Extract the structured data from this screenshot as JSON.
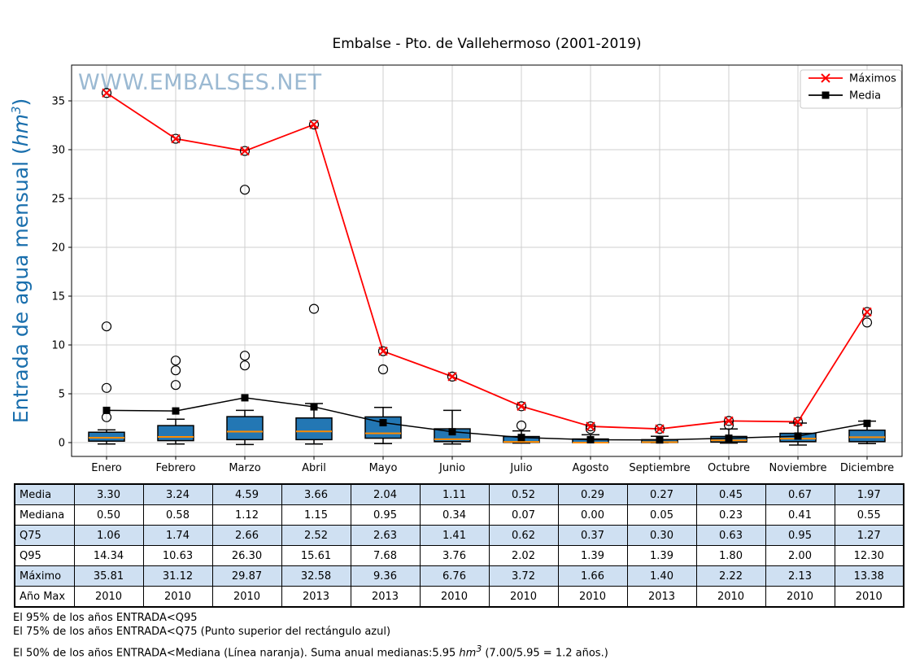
{
  "chart_data": {
    "type": "boxplot",
    "title": "Embalse - Pto. de Vallehermoso (2001-2019)",
    "watermark": "WWW.EMBALSES.NET",
    "ylabel": {
      "pre": "Entrada de agua mensual (",
      "unit": "hm",
      "sup": "3",
      "post": ")"
    },
    "ylim": [
      -1.8,
      37.6
    ],
    "yticks": [
      0,
      5,
      10,
      15,
      20,
      25,
      30,
      35
    ],
    "grid": true,
    "categories": [
      "Enero",
      "Febrero",
      "Marzo",
      "Abril",
      "Mayo",
      "Junio",
      "Julio",
      "Agosto",
      "Septiembre",
      "Octubre",
      "Noviembre",
      "Diciembre"
    ],
    "legend": {
      "position": "top-right",
      "entries": [
        {
          "label": "Máximos",
          "color": "#ff0000",
          "marker": "x"
        },
        {
          "label": "Media",
          "color": "#000000",
          "marker": "square"
        }
      ]
    },
    "series": [
      {
        "name": "Máximos",
        "type": "line",
        "color": "#ff0000",
        "marker": "x",
        "values": [
          35.81,
          31.12,
          29.87,
          32.58,
          9.36,
          6.76,
          3.72,
          1.66,
          1.4,
          2.22,
          2.13,
          13.38
        ]
      },
      {
        "name": "Media",
        "type": "line",
        "color": "#000000",
        "marker": "square",
        "values": [
          3.3,
          3.24,
          4.59,
          3.66,
          2.04,
          1.11,
          0.52,
          0.29,
          0.27,
          0.45,
          0.67,
          1.97
        ]
      }
    ],
    "boxplot": {
      "box_color": "#2377b4",
      "median_color": "#ff8c00",
      "boxes": [
        {
          "month": "Enero",
          "q1": 0.15,
          "median": 0.5,
          "q3": 1.06,
          "whisker_low": -0.15,
          "whisker_high": 1.3,
          "outliers": [
            2.6,
            5.6,
            11.9
          ]
        },
        {
          "month": "Febrero",
          "q1": 0.2,
          "median": 0.58,
          "q3": 1.74,
          "whisker_low": -0.15,
          "whisker_high": 2.4,
          "outliers": [
            5.9,
            7.4,
            8.4
          ]
        },
        {
          "month": "Marzo",
          "q1": 0.3,
          "median": 1.12,
          "q3": 2.66,
          "whisker_low": -0.2,
          "whisker_high": 3.3,
          "outliers": [
            7.9,
            8.9,
            25.9
          ]
        },
        {
          "month": "Abril",
          "q1": 0.3,
          "median": 1.15,
          "q3": 2.52,
          "whisker_low": -0.15,
          "whisker_high": 4.0,
          "outliers": [
            13.7
          ]
        },
        {
          "month": "Mayo",
          "q1": 0.45,
          "median": 0.95,
          "q3": 2.63,
          "whisker_low": -0.1,
          "whisker_high": 3.6,
          "outliers": [
            7.5
          ]
        },
        {
          "month": "Junio",
          "q1": 0.1,
          "median": 0.34,
          "q3": 1.41,
          "whisker_low": -0.15,
          "whisker_high": 3.3,
          "outliers": []
        },
        {
          "month": "Julio",
          "q1": 0.02,
          "median": 0.07,
          "q3": 0.62,
          "whisker_low": -0.05,
          "whisker_high": 1.2,
          "outliers": [
            1.75
          ]
        },
        {
          "month": "Agosto",
          "q1": 0.0,
          "median": 0.0,
          "q3": 0.37,
          "whisker_low": 0.0,
          "whisker_high": 0.8,
          "outliers": [
            1.39
          ]
        },
        {
          "month": "Septiembre",
          "q1": 0.01,
          "median": 0.05,
          "q3": 0.3,
          "whisker_low": 0.0,
          "whisker_high": 0.65,
          "outliers": []
        },
        {
          "month": "Octubre",
          "q1": 0.05,
          "median": 0.23,
          "q3": 0.63,
          "whisker_low": -0.05,
          "whisker_high": 1.4,
          "outliers": [
            1.8
          ]
        },
        {
          "month": "Noviembre",
          "q1": 0.1,
          "median": 0.41,
          "q3": 0.95,
          "whisker_low": -0.25,
          "whisker_high": 2.0,
          "outliers": []
        },
        {
          "month": "Diciembre",
          "q1": 0.1,
          "median": 0.55,
          "q3": 1.27,
          "whisker_low": -0.1,
          "whisker_high": 2.2,
          "outliers": [
            12.3
          ]
        }
      ]
    },
    "max_points_circled": true
  },
  "table": {
    "row_labels": [
      "Media",
      "Mediana",
      "Q75",
      "Q95",
      "Máximo",
      "Año Max"
    ],
    "rows": [
      {
        "label": "Media",
        "values": [
          "3.30",
          "3.24",
          "4.59",
          "3.66",
          "2.04",
          "1.11",
          "0.52",
          "0.29",
          "0.27",
          "0.45",
          "0.67",
          "1.97"
        ]
      },
      {
        "label": "Mediana",
        "values": [
          "0.50",
          "0.58",
          "1.12",
          "1.15",
          "0.95",
          "0.34",
          "0.07",
          "0.00",
          "0.05",
          "0.23",
          "0.41",
          "0.55"
        ]
      },
      {
        "label": "Q75",
        "values": [
          "1.06",
          "1.74",
          "2.66",
          "2.52",
          "2.63",
          "1.41",
          "0.62",
          "0.37",
          "0.30",
          "0.63",
          "0.95",
          "1.27"
        ]
      },
      {
        "label": "Q95",
        "values": [
          "14.34",
          "10.63",
          "26.30",
          "15.61",
          "7.68",
          "3.76",
          "2.02",
          "1.39",
          "1.39",
          "1.80",
          "2.00",
          "12.30"
        ]
      },
      {
        "label": "Máximo",
        "values": [
          "35.81",
          "31.12",
          "29.87",
          "32.58",
          "9.36",
          "6.76",
          "3.72",
          "1.66",
          "1.40",
          "2.22",
          "2.13",
          "13.38"
        ]
      },
      {
        "label": "Año Max",
        "values": [
          "2010",
          "2010",
          "2010",
          "2013",
          "2013",
          "2010",
          "2010",
          "2010",
          "2013",
          "2010",
          "2010",
          "2010"
        ]
      }
    ],
    "shaded_row_color": "#cfe0f2"
  },
  "footnotes": {
    "line1": "El 95% de los años ENTRADA<Q95",
    "line2": "El 75% de los años ENTRADA<Q75 (Punto superior del rectángulo azul)",
    "line3": {
      "pre": "El 50% de los años ENTRADA<Mediana (Línea naranja). Suma anual medianas:5.95 ",
      "unit": "hm",
      "sup": "3",
      "post": " (7.00/5.95 = 1.2 años.)"
    }
  }
}
